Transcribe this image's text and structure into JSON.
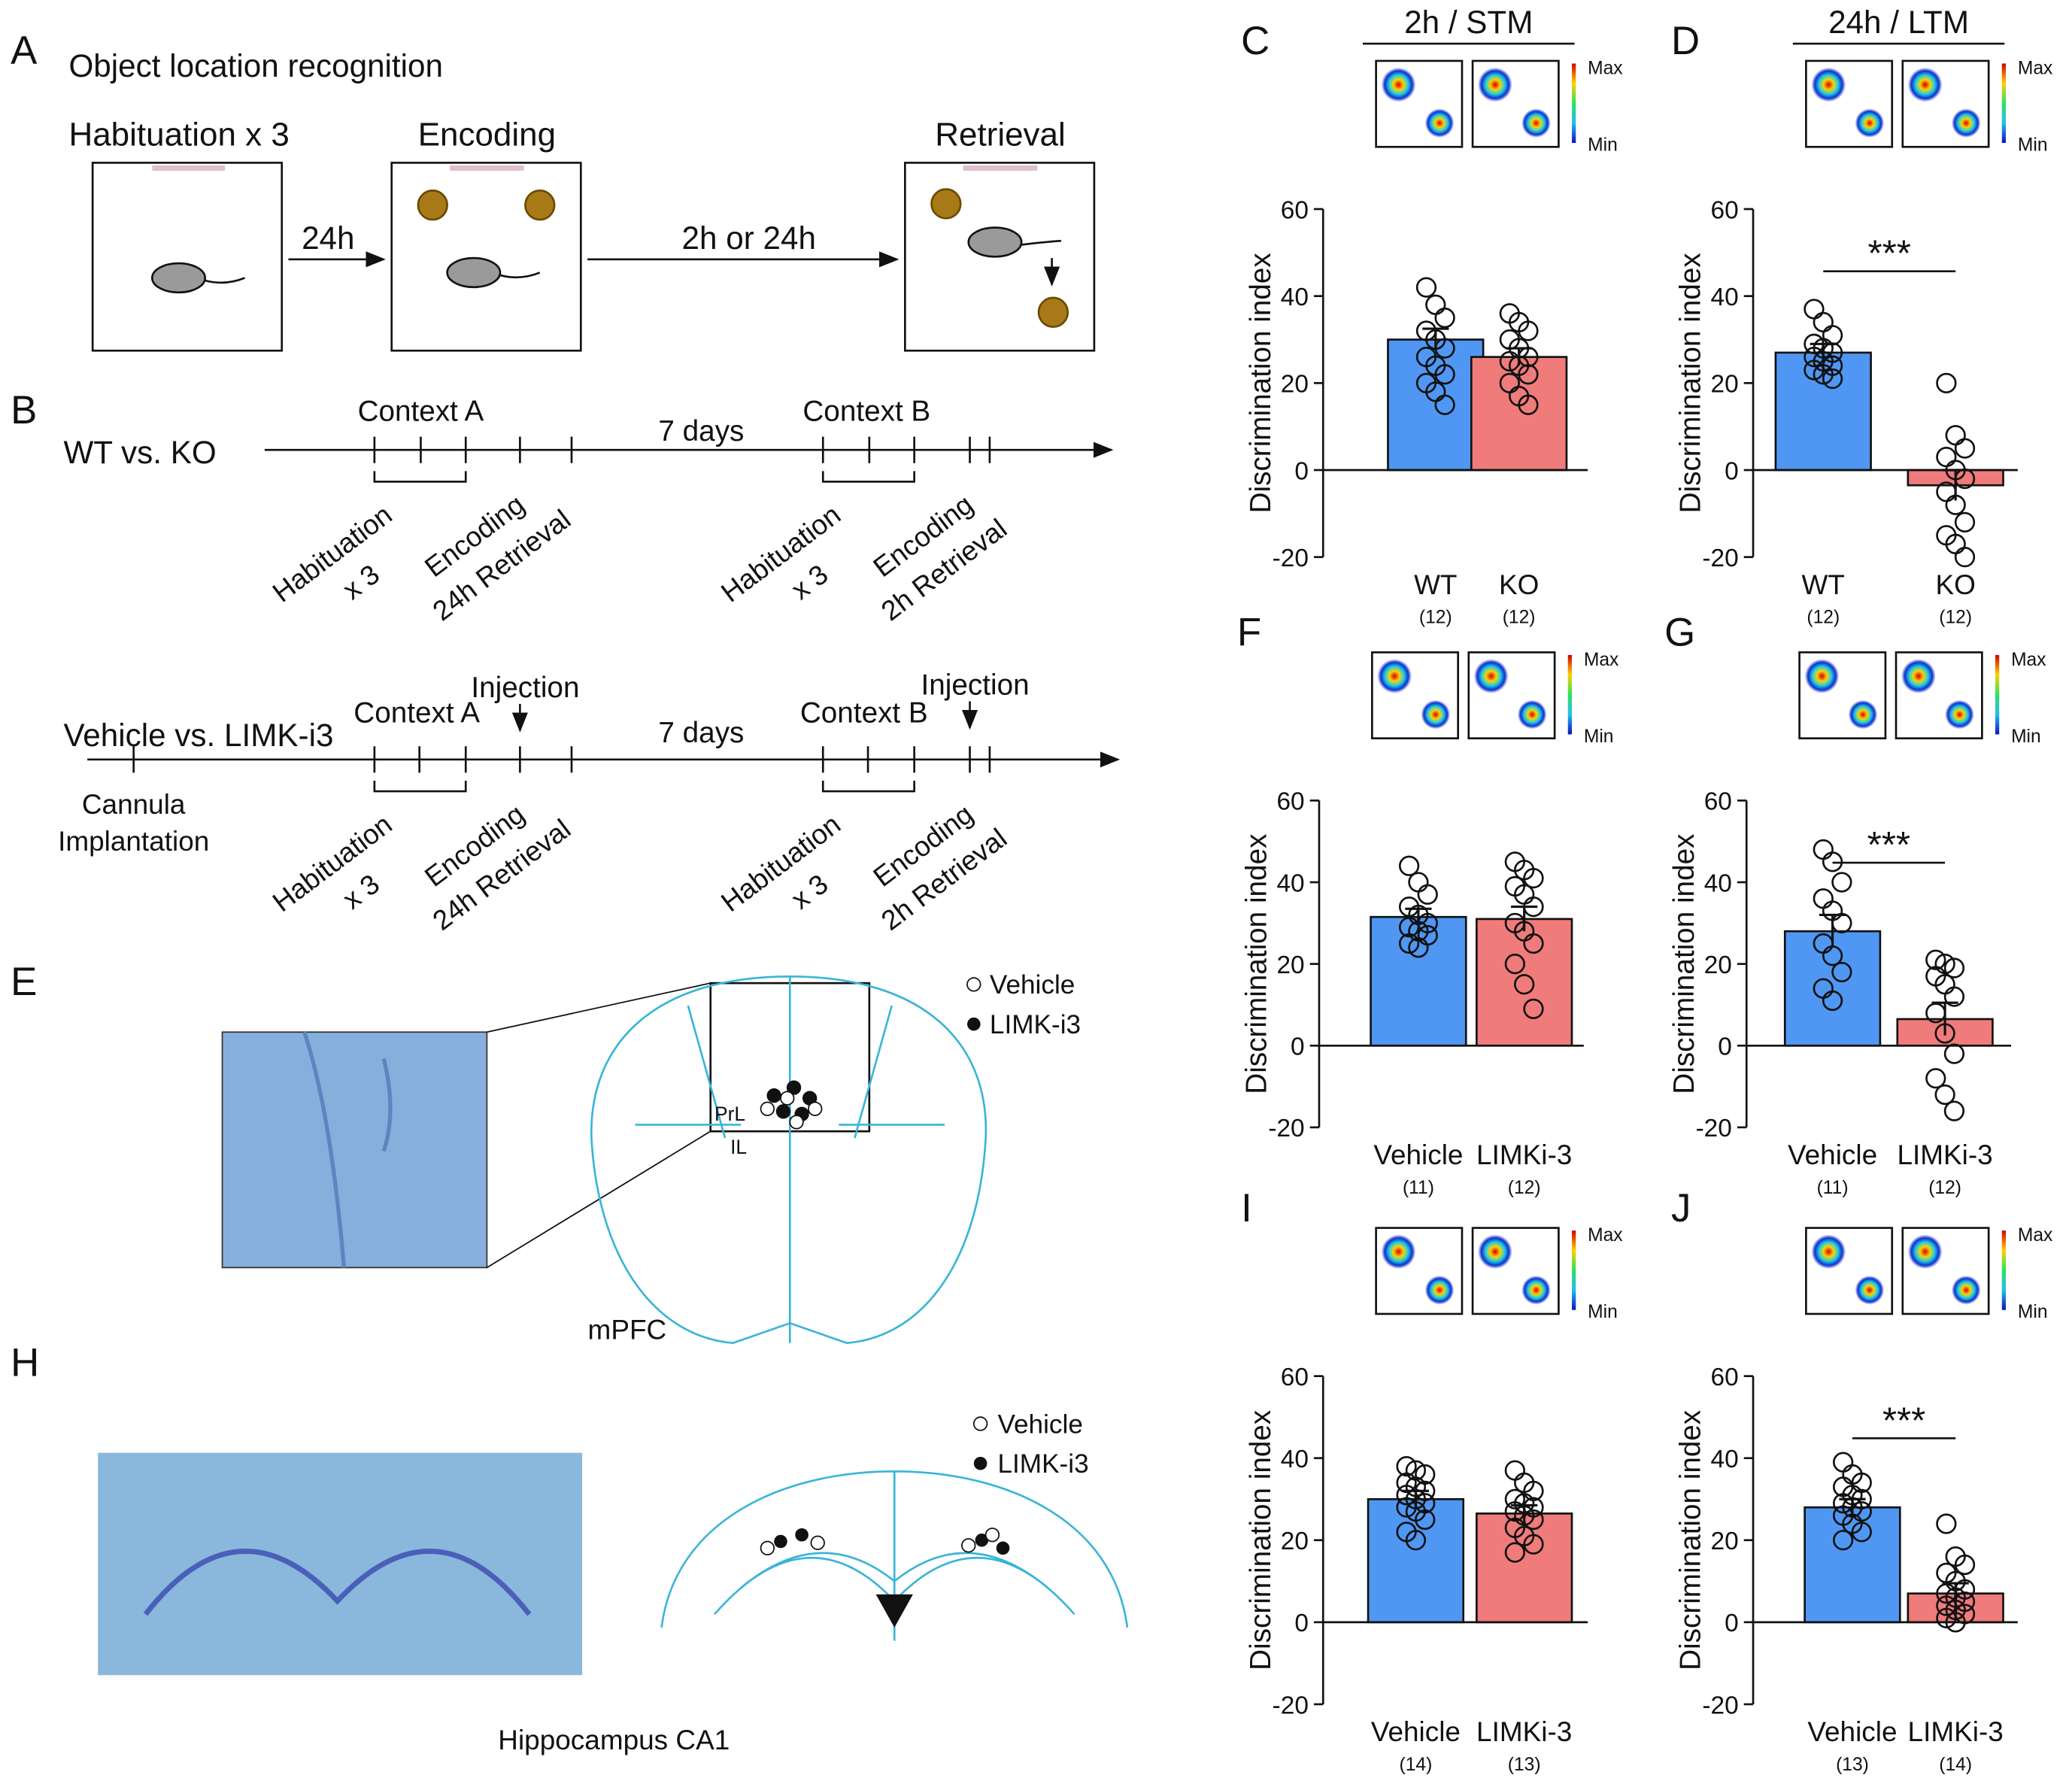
{
  "panels": {
    "A": {
      "letter": "A",
      "title": "Object location recognition",
      "stages": [
        "Habituation x 3",
        "Encoding",
        "Retrieval"
      ],
      "intervals": [
        "24h",
        "2h or 24h"
      ]
    },
    "B": {
      "letter": "B",
      "rows": [
        "WT vs. KO",
        "Vehicle vs. LIMK-i3"
      ],
      "contexts": [
        "Context A",
        "Context B"
      ],
      "gap": "7 days",
      "steps": [
        "Habituation",
        "x 3",
        "Encoding",
        "24h Retrieval",
        "2h Retrieval"
      ],
      "injection": "Injection",
      "cannula": [
        "Cannula",
        "Implantation"
      ]
    },
    "E": {
      "letter": "E",
      "legend": [
        "Vehicle",
        "LIMK-i3"
      ],
      "regions": [
        "PrL",
        "IL"
      ],
      "caption": "mPFC"
    },
    "H": {
      "letter": "H",
      "legend": [
        "Vehicle",
        "LIMK-i3"
      ],
      "caption": "Hippocampus CA1"
    }
  },
  "heatmap_scale": [
    "Max",
    "Min"
  ],
  "chart_data": [
    {
      "type": "bar",
      "letter": "C",
      "title": "2h / STM",
      "ylabel": "Discrimination index",
      "categories": [
        "WT",
        "KO"
      ],
      "counts": [
        "(12)",
        "(12)"
      ],
      "values": [
        30,
        26
      ],
      "errors": [
        2.5,
        2
      ],
      "points": [
        [
          42,
          38,
          35,
          32,
          30,
          28,
          26,
          24,
          22,
          20,
          18,
          15
        ],
        [
          36,
          34,
          32,
          30,
          28,
          26,
          25,
          24,
          22,
          20,
          17,
          15
        ]
      ],
      "colors": [
        "#4f97f3",
        "#f07b7b"
      ],
      "ylim": [
        -20,
        60
      ],
      "yticks": [
        -20,
        0,
        20,
        40,
        60
      ]
    },
    {
      "type": "bar",
      "letter": "D",
      "title": "24h / LTM",
      "ylabel": "Discrimination index",
      "categories": [
        "WT",
        "KO"
      ],
      "counts": [
        "(12)",
        "(12)"
      ],
      "values": [
        27,
        -3.5
      ],
      "errors": [
        2,
        3.5
      ],
      "points": [
        [
          37,
          34,
          31,
          29,
          28,
          27,
          26,
          25,
          24,
          23,
          22,
          21
        ],
        [
          20,
          8,
          5,
          3,
          0,
          -2,
          -5,
          -8,
          -12,
          -15,
          -17,
          -20
        ]
      ],
      "colors": [
        "#4f97f3",
        "#f07b7b"
      ],
      "ylim": [
        -20,
        60
      ],
      "yticks": [
        -20,
        0,
        20,
        40,
        60
      ],
      "annotation": "***"
    },
    {
      "type": "bar",
      "letter": "F",
      "ylabel": "Discrimination index",
      "categories": [
        "Vehicle",
        "LIMKi-3"
      ],
      "counts": [
        "(11)",
        "(12)"
      ],
      "values": [
        31.5,
        31
      ],
      "errors": [
        2,
        3
      ],
      "points": [
        [
          44,
          40,
          37,
          34,
          32,
          30,
          29,
          28,
          27,
          25,
          24
        ],
        [
          45,
          43,
          41,
          39,
          37,
          34,
          30,
          28,
          25,
          20,
          15,
          9
        ]
      ],
      "colors": [
        "#4f97f3",
        "#f07b7b"
      ],
      "ylim": [
        -20,
        60
      ],
      "yticks": [
        -20,
        0,
        20,
        40,
        60
      ]
    },
    {
      "type": "bar",
      "letter": "G",
      "ylabel": "Discrimination index",
      "categories": [
        "Vehicle",
        "LIMKi-3"
      ],
      "counts": [
        "(11)",
        "(12)"
      ],
      "values": [
        28,
        6.5
      ],
      "errors": [
        4,
        4
      ],
      "points": [
        [
          48,
          45,
          40,
          36,
          33,
          30,
          25,
          22,
          18,
          14,
          11
        ],
        [
          21,
          20,
          19,
          17,
          15,
          12,
          8,
          3,
          -2,
          -8,
          -12,
          -16
        ]
      ],
      "colors": [
        "#4f97f3",
        "#f07b7b"
      ],
      "ylim": [
        -20,
        60
      ],
      "yticks": [
        -20,
        0,
        20,
        40,
        60
      ],
      "annotation": "***"
    },
    {
      "type": "bar",
      "letter": "I",
      "ylabel": "Discrimination index",
      "categories": [
        "Vehicle",
        "LIMKi-3"
      ],
      "counts": [
        "(14)",
        "(13)"
      ],
      "values": [
        30,
        26.5
      ],
      "errors": [
        2,
        2
      ],
      "points": [
        [
          38,
          37,
          36,
          34,
          33,
          32,
          31,
          30,
          29,
          28,
          27,
          25,
          22,
          20
        ],
        [
          37,
          34,
          32,
          30,
          29,
          28,
          27,
          26,
          25,
          23,
          21,
          19,
          17
        ]
      ],
      "colors": [
        "#4f97f3",
        "#f07b7b"
      ],
      "ylim": [
        -20,
        60
      ],
      "yticks": [
        -20,
        0,
        20,
        40,
        60
      ]
    },
    {
      "type": "bar",
      "letter": "J",
      "ylabel": "Discrimination index",
      "categories": [
        "Vehicle",
        "LIMKi-3"
      ],
      "counts": [
        "(13)",
        "(14)"
      ],
      "values": [
        28,
        7
      ],
      "errors": [
        2,
        2.5
      ],
      "points": [
        [
          39,
          36,
          34,
          33,
          31,
          30,
          29,
          28,
          27,
          26,
          24,
          22,
          20
        ],
        [
          24,
          16,
          14,
          12,
          10,
          8,
          7,
          6,
          5,
          4,
          3,
          2,
          1,
          0
        ]
      ],
      "colors": [
        "#4f97f3",
        "#f07b7b"
      ],
      "ylim": [
        -20,
        60
      ],
      "yticks": [
        -20,
        0,
        20,
        40,
        60
      ],
      "annotation": "***"
    }
  ]
}
